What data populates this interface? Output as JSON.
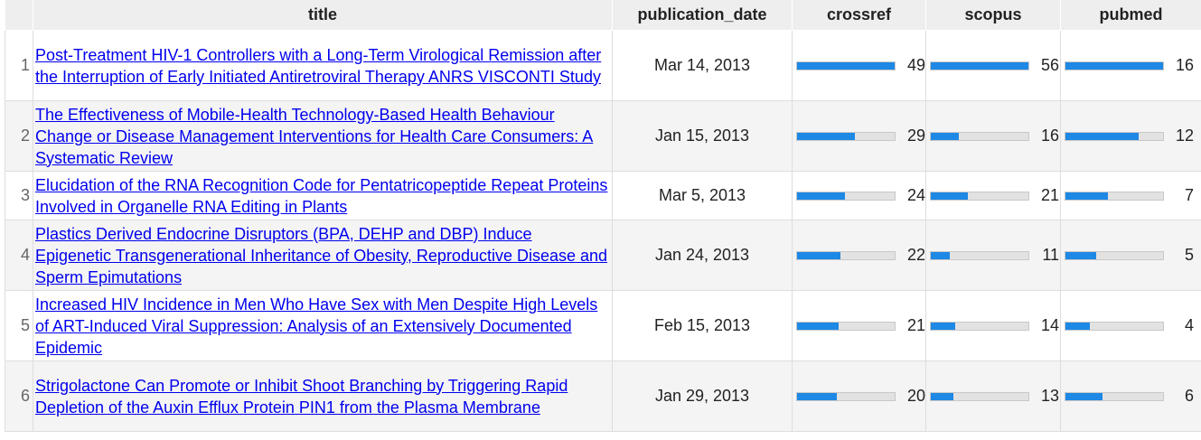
{
  "columns": {
    "index": "",
    "title": "title",
    "publication_date": "publication_date",
    "crossref": "crossref",
    "scopus": "scopus",
    "pubmed": "pubmed"
  },
  "colors": {
    "bar_fill": "#1e88e5",
    "bar_track": "#e2e2e2",
    "link": "#0000ee"
  },
  "maxima": {
    "crossref": 49,
    "scopus": 56,
    "pubmed": 16
  },
  "rows": [
    {
      "index": "1",
      "title": "Post-Treatment HIV-1 Controllers with a Long-Term Virological Remission after the Interruption of Early Initiated Antiretroviral Therapy ANRS VISCONTI Study",
      "publication_date": "Mar 14, 2013",
      "crossref": 49,
      "scopus": 56,
      "pubmed": 16
    },
    {
      "index": "2",
      "title": "The Effectiveness of Mobile-Health Technology-Based Health Behaviour Change or Disease Management Interventions for Health Care Consumers: A Systematic Review",
      "publication_date": "Jan 15, 2013",
      "crossref": 29,
      "scopus": 16,
      "pubmed": 12
    },
    {
      "index": "3",
      "title": "Elucidation of the RNA Recognition Code for Pentatricopeptide Repeat Proteins Involved in Organelle RNA Editing in Plants",
      "publication_date": "Mar 5, 2013",
      "crossref": 24,
      "scopus": 21,
      "pubmed": 7
    },
    {
      "index": "4",
      "title": "Plastics Derived Endocrine Disruptors (BPA, DEHP and DBP) Induce Epigenetic Transgenerational Inheritance of Obesity, Reproductive Disease and Sperm Epimutations",
      "publication_date": "Jan 24, 2013",
      "crossref": 22,
      "scopus": 11,
      "pubmed": 5
    },
    {
      "index": "5",
      "title": "Increased HIV Incidence in Men Who Have Sex with Men Despite High Levels of ART-Induced Viral Suppression: Analysis of an Extensively Documented Epidemic",
      "publication_date": "Feb 15, 2013",
      "crossref": 21,
      "scopus": 14,
      "pubmed": 4
    },
    {
      "index": "6",
      "title": "Strigolactone Can Promote or Inhibit Shoot Branching by Triggering Rapid Depletion of the Auxin Efflux Protein PIN1 from the Plasma Membrane",
      "publication_date": "Jan 29, 2013",
      "crossref": 20,
      "scopus": 13,
      "pubmed": 6
    }
  ]
}
